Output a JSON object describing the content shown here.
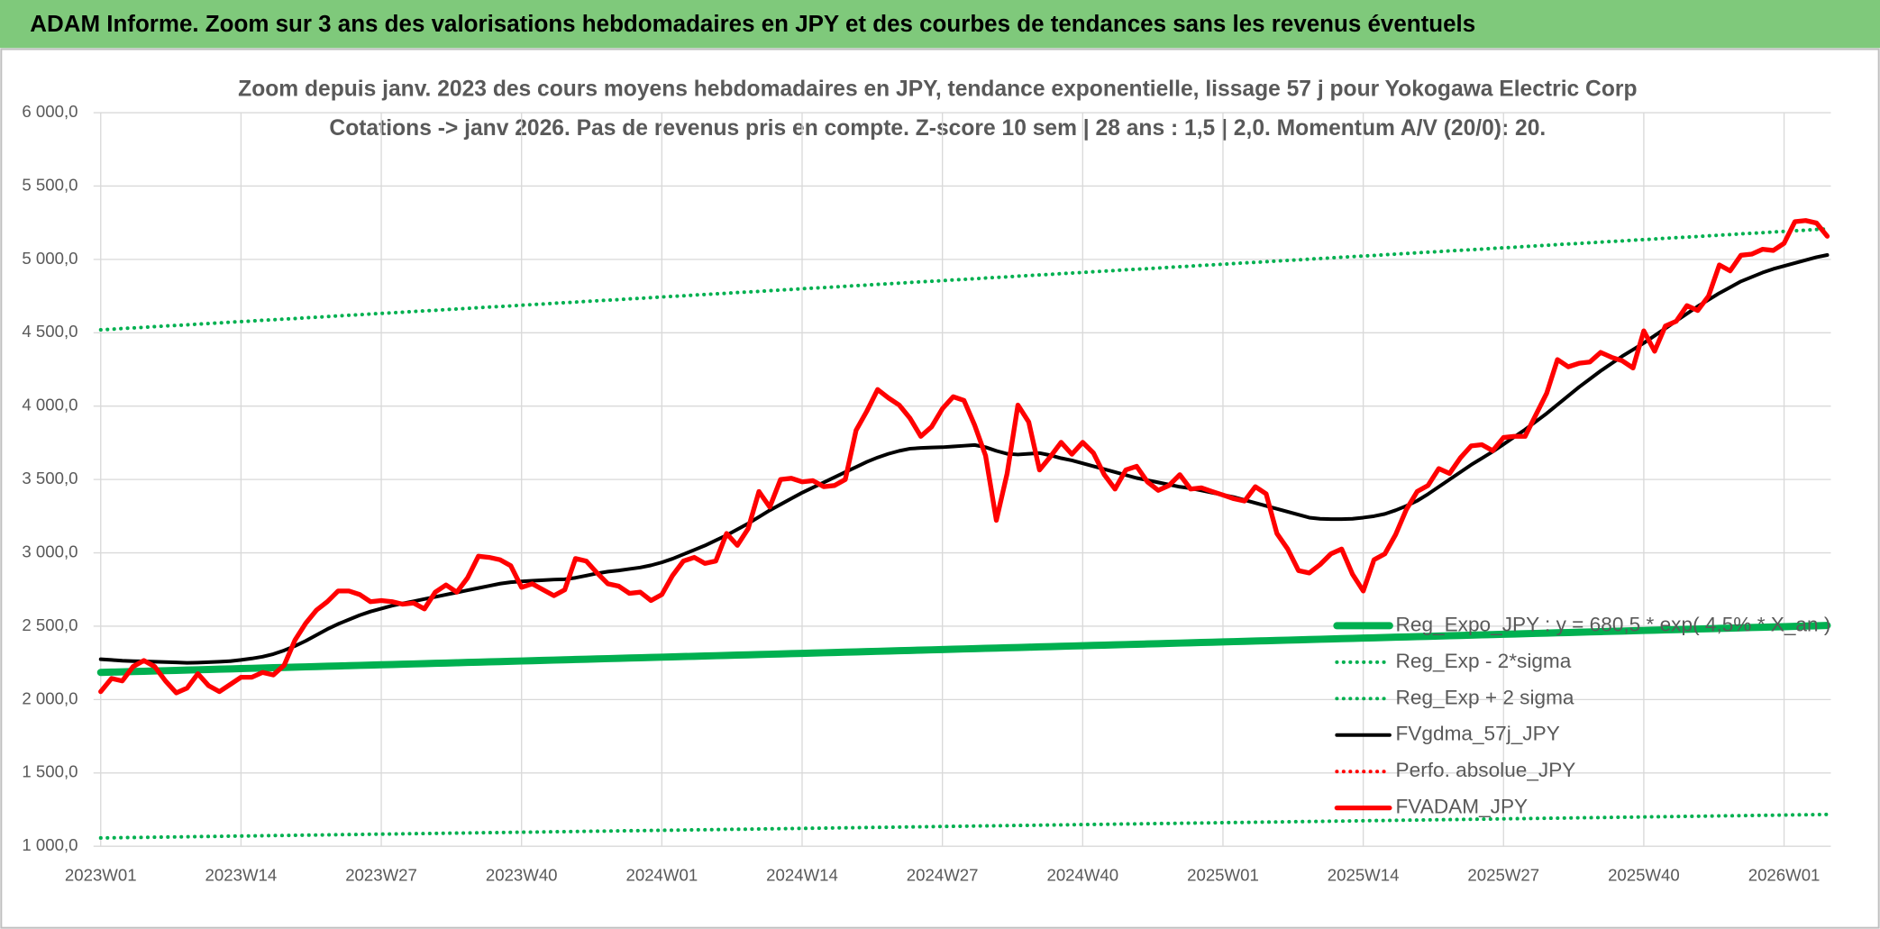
{
  "page_title": "ADAM Informe. Zoom sur 3 ans des valorisations hebdomadaires en JPY et des courbes de tendances sans les revenus éventuels",
  "chart_data": {
    "type": "line",
    "title": "Zoom depuis janv. 2023 des cours moyens hebdomadaires en JPY, tendance exponentielle, lissage 57 j pour Yokogawa Electric Corp",
    "subtitle": "Cotations -> janv 2026. Pas de revenus pris en compte. Z-score 10 sem | 28 ans : 1,5 | 2,0. Momentum A/V (20/0): 20.",
    "categories": [
      "2023W01",
      null,
      null,
      null,
      null,
      null,
      null,
      null,
      null,
      null,
      null,
      null,
      null,
      "2023W14",
      null,
      null,
      null,
      null,
      null,
      null,
      null,
      null,
      null,
      null,
      null,
      null,
      "2023W27",
      null,
      null,
      null,
      null,
      null,
      null,
      null,
      null,
      null,
      null,
      null,
      null,
      "2023W40",
      null,
      null,
      null,
      null,
      null,
      null,
      null,
      null,
      null,
      null,
      null,
      null,
      "2024W01",
      null,
      null,
      null,
      null,
      null,
      null,
      null,
      null,
      null,
      null,
      null,
      null,
      "2024W14",
      null,
      null,
      null,
      null,
      null,
      null,
      null,
      null,
      null,
      null,
      null,
      null,
      "2024W27",
      null,
      null,
      null,
      null,
      null,
      null,
      null,
      null,
      null,
      null,
      null,
      null,
      "2024W40",
      null,
      null,
      null,
      null,
      null,
      null,
      null,
      null,
      null,
      null,
      null,
      null,
      "2025W01",
      null,
      null,
      null,
      null,
      null,
      null,
      null,
      null,
      null,
      null,
      null,
      null,
      "2025W14",
      null,
      null,
      null,
      null,
      null,
      null,
      null,
      null,
      null,
      null,
      null,
      null,
      "2025W27",
      null,
      null,
      null,
      null,
      null,
      null,
      null,
      null,
      null,
      null,
      null,
      null,
      "2025W40",
      null,
      null,
      null,
      null,
      null,
      null,
      null,
      null,
      null,
      null,
      null,
      null,
      "2026W01",
      null,
      null,
      null,
      null
    ],
    "ylim": [
      1000,
      6000
    ],
    "yticks": [
      {
        "value": 1000,
        "label": "1 000,0"
      },
      {
        "value": 1500,
        "label": "1 500,0"
      },
      {
        "value": 2000,
        "label": "2 000,0"
      },
      {
        "value": 2500,
        "label": "2 500,0"
      },
      {
        "value": 3000,
        "label": "3 000,0"
      },
      {
        "value": 3500,
        "label": "3 500,0"
      },
      {
        "value": 4000,
        "label": "4 000,0"
      },
      {
        "value": 4500,
        "label": "4 500,0"
      },
      {
        "value": 5000,
        "label": "5 000,0"
      },
      {
        "value": 5500,
        "label": "5 500,0"
      },
      {
        "value": 6000,
        "label": "6 000,0"
      }
    ],
    "grid": true,
    "legend": "bottom-right",
    "series": [
      {
        "name": "Reg_Expo_JPY : y = 680,5 * exp( 4,5% * X_an )",
        "color": "#00b050",
        "style": "solid",
        "values": [
          2185,
          2187,
          2189,
          2191,
          2193,
          2195,
          2197,
          2199,
          2201,
          2203,
          2205,
          2207,
          2209,
          2211,
          2213,
          2215,
          2217,
          2219,
          2221,
          2223,
          2225,
          2227,
          2229,
          2231,
          2233,
          2235,
          2237,
          2239,
          2241,
          2243,
          2245,
          2247,
          2249,
          2251,
          2253,
          2255,
          2257,
          2259,
          2261,
          2263,
          2265,
          2267,
          2269,
          2271,
          2273,
          2275,
          2277,
          2279,
          2281,
          2283,
          2285,
          2287,
          2289,
          2291,
          2293,
          2295,
          2297,
          2299,
          2301,
          2303,
          2305,
          2307,
          2309,
          2311,
          2313,
          2315,
          2317,
          2319,
          2321,
          2323,
          2325,
          2327,
          2329,
          2331,
          2333,
          2335,
          2337,
          2339,
          2341,
          2343,
          2345,
          2347,
          2349,
          2351,
          2353,
          2355,
          2357,
          2359,
          2361,
          2363,
          2365,
          2367,
          2369,
          2371,
          2373,
          2375,
          2377,
          2379,
          2381,
          2383,
          2385,
          2387,
          2389,
          2391,
          2393,
          2395,
          2397,
          2399,
          2401,
          2403,
          2405,
          2407,
          2409,
          2411,
          2413,
          2415,
          2417,
          2419,
          2421,
          2423,
          2425,
          2427,
          2429,
          2431,
          2433,
          2435,
          2437,
          2439,
          2441,
          2443,
          2445,
          2447,
          2449,
          2451,
          2453,
          2455,
          2457,
          2459,
          2461,
          2463,
          2465,
          2467,
          2469,
          2471,
          2473,
          2475,
          2477,
          2479,
          2481,
          2483,
          2485,
          2487,
          2489,
          2491,
          2493,
          2495,
          2497,
          2499,
          2501,
          2503,
          2505
        ]
      },
      {
        "name": "Reg_Exp - 2*sigma",
        "color": "#00b050",
        "style": "dotted",
        "values": [
          1057,
          1058,
          1059,
          1060,
          1061,
          1062,
          1063,
          1064,
          1065,
          1066,
          1067,
          1068,
          1069,
          1070,
          1071,
          1072,
          1073,
          1074,
          1075,
          1076,
          1077,
          1078,
          1079,
          1080,
          1081,
          1082,
          1083,
          1084,
          1085,
          1086,
          1087,
          1088,
          1089,
          1090,
          1091,
          1092,
          1093,
          1094,
          1095,
          1096,
          1097,
          1098,
          1099,
          1100,
          1101,
          1102,
          1103,
          1104,
          1105,
          1106,
          1107,
          1108,
          1109,
          1110,
          1111,
          1112,
          1113,
          1114,
          1115,
          1116,
          1117,
          1118,
          1119,
          1120,
          1121,
          1122,
          1123,
          1124,
          1125,
          1126,
          1127,
          1128,
          1129,
          1130,
          1131,
          1132,
          1133,
          1134,
          1135,
          1136,
          1137,
          1138,
          1139,
          1140,
          1141,
          1142,
          1143,
          1144,
          1145,
          1146,
          1147,
          1148,
          1149,
          1150,
          1151,
          1152,
          1153,
          1154,
          1155,
          1156,
          1157,
          1158,
          1159,
          1160,
          1161,
          1162,
          1163,
          1164,
          1165,
          1166,
          1167,
          1168,
          1169,
          1170,
          1171,
          1172,
          1173,
          1174,
          1175,
          1176,
          1177,
          1178,
          1179,
          1180,
          1181,
          1182,
          1183,
          1184,
          1185,
          1186,
          1187,
          1188,
          1189,
          1190,
          1191,
          1192,
          1193,
          1194,
          1195,
          1196,
          1197,
          1198,
          1199,
          1200,
          1201,
          1202,
          1203,
          1204,
          1205,
          1206,
          1207,
          1208,
          1209,
          1210,
          1211,
          1212,
          1213,
          1214,
          1215,
          1216,
          1217
        ]
      },
      {
        "name": "Reg_Exp + 2 sigma",
        "color": "#00b050",
        "style": "dotted",
        "values": [
          4520,
          4524,
          4529,
          4533,
          4537,
          4542,
          4546,
          4550,
          4554,
          4559,
          4563,
          4567,
          4572,
          4576,
          4580,
          4585,
          4589,
          4593,
          4597,
          4602,
          4606,
          4610,
          4615,
          4619,
          4623,
          4628,
          4632,
          4636,
          4640,
          4645,
          4649,
          4653,
          4658,
          4662,
          4666,
          4671,
          4675,
          4679,
          4683,
          4688,
          4692,
          4696,
          4701,
          4705,
          4709,
          4714,
          4718,
          4722,
          4726,
          4731,
          4735,
          4739,
          4744,
          4748,
          4752,
          4757,
          4761,
          4765,
          4769,
          4774,
          4778,
          4782,
          4787,
          4791,
          4795,
          4800,
          4804,
          4808,
          4812,
          4817,
          4821,
          4825,
          4830,
          4834,
          4838,
          4843,
          4847,
          4851,
          4855,
          4860,
          4864,
          4868,
          4873,
          4877,
          4881,
          4886,
          4890,
          4894,
          4898,
          4903,
          4907,
          4911,
          4916,
          4920,
          4924,
          4929,
          4933,
          4937,
          4941,
          4946,
          4950,
          4954,
          4959,
          4963,
          4967,
          4972,
          4976,
          4980,
          4984,
          4989,
          4993,
          4997,
          5002,
          5006,
          5010,
          5015,
          5019,
          5023,
          5027,
          5032,
          5036,
          5040,
          5045,
          5049,
          5053,
          5058,
          5062,
          5066,
          5070,
          5075,
          5079,
          5083,
          5088,
          5092,
          5096,
          5101,
          5105,
          5109,
          5113,
          5118,
          5122,
          5126,
          5131,
          5135,
          5139,
          5144,
          5148,
          5152,
          5156,
          5161,
          5165,
          5169,
          5174,
          5178,
          5182,
          5187,
          5191,
          5195,
          5199,
          5204,
          5208
        ]
      },
      {
        "name": "FVgdma_57j_JPY",
        "color": "#000000",
        "style": "solid",
        "values": [
          2275,
          2270,
          2265,
          2262,
          2260,
          2258,
          2256,
          2253,
          2250,
          2252,
          2255,
          2258,
          2262,
          2270,
          2280,
          2292,
          2310,
          2335,
          2365,
          2400,
          2440,
          2480,
          2515,
          2545,
          2575,
          2600,
          2620,
          2640,
          2655,
          2670,
          2685,
          2700,
          2715,
          2730,
          2745,
          2760,
          2775,
          2790,
          2800,
          2805,
          2810,
          2814,
          2818,
          2820,
          2830,
          2845,
          2860,
          2872,
          2880,
          2890,
          2900,
          2915,
          2935,
          2960,
          2990,
          3020,
          3050,
          3085,
          3120,
          3160,
          3200,
          3245,
          3290,
          3330,
          3370,
          3410,
          3445,
          3480,
          3515,
          3550,
          3585,
          3620,
          3650,
          3675,
          3695,
          3710,
          3715,
          3718,
          3720,
          3725,
          3730,
          3735,
          3720,
          3695,
          3675,
          3670,
          3675,
          3680,
          3665,
          3645,
          3630,
          3610,
          3590,
          3570,
          3550,
          3530,
          3510,
          3495,
          3480,
          3465,
          3450,
          3440,
          3425,
          3410,
          3395,
          3380,
          3360,
          3340,
          3320,
          3300,
          3280,
          3260,
          3240,
          3232,
          3230,
          3230,
          3232,
          3240,
          3250,
          3265,
          3290,
          3320,
          3355,
          3400,
          3450,
          3500,
          3550,
          3600,
          3645,
          3690,
          3740,
          3790,
          3840,
          3895,
          3950,
          4010,
          4070,
          4130,
          4185,
          4240,
          4290,
          4340,
          4385,
          4430,
          4480,
          4530,
          4580,
          4630,
          4680,
          4725,
          4770,
          4810,
          4850,
          4880,
          4910,
          4935,
          4955,
          4975,
          4995,
          5015,
          5030
        ]
      },
      {
        "name": "Perfo. absolue_JPY",
        "color": "#ff0000",
        "style": "dotted"
      },
      {
        "name": "FVADAM_JPY",
        "color": "#ff0000",
        "style": "solid",
        "values": [
          2054,
          2144,
          2127,
          2225,
          2266,
          2225,
          2127,
          2046,
          2078,
          2176,
          2095,
          2054,
          2103,
          2152,
          2152,
          2185,
          2168,
          2234,
          2405,
          2520,
          2610,
          2667,
          2740,
          2740,
          2716,
          2667,
          2675,
          2667,
          2650,
          2658,
          2618,
          2732,
          2781,
          2732,
          2830,
          2977,
          2969,
          2953,
          2912,
          2765,
          2789,
          2748,
          2708,
          2748,
          2961,
          2944,
          2863,
          2789,
          2773,
          2724,
          2732,
          2675,
          2716,
          2846,
          2944,
          2969,
          2928,
          2944,
          3132,
          3051,
          3165,
          3418,
          3312,
          3500,
          3508,
          3484,
          3492,
          3451,
          3459,
          3500,
          3835,
          3966,
          4113,
          4056,
          4007,
          3917,
          3794,
          3859,
          3982,
          4064,
          4039,
          3868,
          3663,
          3222,
          3541,
          4007,
          3892,
          3565,
          3655,
          3753,
          3672,
          3753,
          3680,
          3533,
          3435,
          3565,
          3590,
          3484,
          3426,
          3459,
          3533,
          3435,
          3443,
          3418,
          3394,
          3369,
          3353,
          3451,
          3402,
          3132,
          3026,
          2879,
          2863,
          2920,
          2993,
          3026,
          2855,
          2740,
          2953,
          2993,
          3124,
          3296,
          3418,
          3459,
          3574,
          3541,
          3647,
          3729,
          3737,
          3696,
          3786,
          3794,
          3794,
          3941,
          4088,
          4317,
          4268,
          4292,
          4301,
          4366,
          4333,
          4309,
          4260,
          4513,
          4374,
          4546,
          4578,
          4685,
          4652,
          4750,
          4962,
          4922,
          5028,
          5036,
          5069,
          5061,
          5110,
          5257,
          5265,
          5248,
          5158
        ]
      }
    ]
  }
}
